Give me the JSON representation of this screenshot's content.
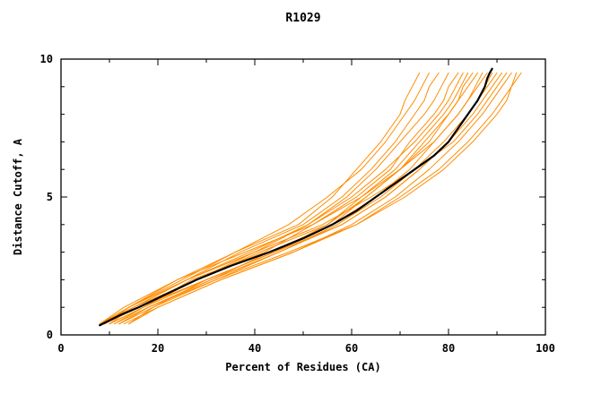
{
  "title": "R1029",
  "chart_data": {
    "type": "line",
    "title": "R1029",
    "xlabel": "Percent of Residues (CA)",
    "ylabel": "Distance Cutoff, A",
    "xlim": [
      0,
      100
    ],
    "ylim": [
      0,
      10
    ],
    "x_ticks": [
      0,
      20,
      40,
      60,
      80,
      100
    ],
    "y_ticks": [
      0,
      5,
      10
    ],
    "x_minor_step": 10,
    "y_minor_step": 1,
    "grid": false,
    "legend": "none",
    "colors": {
      "models": "#ff8c00",
      "reference": "#000000"
    },
    "common_y": [
      0.4,
      1,
      2,
      3,
      4,
      5,
      6,
      7,
      8,
      8.5,
      9,
      9.5
    ],
    "series": [
      {
        "name": "model-1",
        "color": "#ff8c00",
        "width": 1,
        "x": [
          9,
          14,
          24,
          36,
          49,
          56,
          61,
          66,
          70,
          71,
          72.5,
          74
        ]
      },
      {
        "name": "model-2",
        "color": "#ff8c00",
        "width": 1,
        "x": [
          8,
          15,
          26,
          37,
          50,
          58,
          64,
          69,
          73,
          75,
          76,
          78
        ]
      },
      {
        "name": "model-3",
        "color": "#ff8c00",
        "width": 1,
        "x": [
          10,
          17,
          27,
          42,
          52,
          61,
          68,
          72,
          77,
          79,
          80,
          82
        ]
      },
      {
        "name": "model-4",
        "color": "#ff8c00",
        "width": 1,
        "x": [
          12,
          18,
          31,
          43,
          56,
          63,
          70,
          75,
          80,
          82,
          83,
          85
        ]
      },
      {
        "name": "model-5",
        "color": "#ff8c00",
        "width": 1,
        "x": [
          8,
          15,
          28,
          41,
          55,
          63,
          70,
          76,
          80,
          82,
          84,
          86
        ]
      },
      {
        "name": "model-6",
        "color": "#ff8c00",
        "width": 1,
        "x": [
          10,
          17,
          30,
          44,
          56,
          65,
          72,
          77,
          82,
          84,
          86,
          88
        ]
      },
      {
        "name": "model-7",
        "color": "#ff8c00",
        "width": 1,
        "x": [
          12,
          19,
          32,
          45,
          58,
          67,
          74,
          80,
          84,
          86,
          88,
          90
        ]
      },
      {
        "name": "model-8",
        "color": "#ff8c00",
        "width": 1,
        "x": [
          9,
          16,
          30,
          44,
          58,
          67,
          74,
          80,
          85,
          87,
          89,
          91
        ]
      },
      {
        "name": "model-9",
        "color": "#ff8c00",
        "width": 1,
        "x": [
          13,
          20,
          33,
          48,
          60,
          69,
          76,
          82,
          87,
          89,
          91,
          93
        ]
      },
      {
        "name": "model-10",
        "color": "#ff8c00",
        "width": 1,
        "x": [
          11,
          18,
          32,
          47,
          61,
          70,
          78,
          84,
          89,
          91,
          93,
          95
        ]
      },
      {
        "name": "model-11",
        "color": "#ff8c00",
        "width": 1,
        "x": [
          14,
          19,
          30,
          44,
          55,
          62,
          69,
          74,
          79,
          81,
          82.5,
          84
        ]
      },
      {
        "name": "model-12",
        "color": "#ff8c00",
        "width": 1,
        "x": [
          8,
          13,
          24,
          38,
          52,
          62,
          70,
          77,
          82,
          84,
          85.5,
          87
        ]
      },
      {
        "name": "model-13",
        "color": "#ff8c00",
        "width": 1,
        "x": [
          11,
          17,
          28,
          40,
          51,
          59,
          65,
          70,
          75,
          77,
          78.5,
          80
        ]
      },
      {
        "name": "model-14",
        "color": "#ff8c00",
        "width": 1,
        "x": [
          10,
          15,
          26,
          40,
          54,
          64,
          73,
          81,
          86,
          88,
          90,
          92
        ]
      },
      {
        "name": "model-15",
        "color": "#ff8c00",
        "width": 1,
        "x": [
          9,
          14,
          25,
          36,
          47,
          55,
          62,
          67,
          71,
          73,
          74.5,
          76
        ]
      },
      {
        "name": "model-16",
        "color": "#ff8c00",
        "width": 1,
        "x": [
          12,
          18,
          31,
          45,
          57,
          66,
          73,
          79,
          84,
          86,
          87.5,
          89
        ]
      },
      {
        "name": "model-17",
        "color": "#ff8c00",
        "width": 1,
        "x": [
          14,
          20,
          33,
          48,
          61,
          71,
          79,
          85,
          90,
          92,
          93,
          94
        ]
      },
      {
        "name": "model-18",
        "color": "#ff8c00",
        "width": 1,
        "x": [
          8,
          14,
          26,
          39,
          51,
          60,
          67,
          73,
          78,
          80,
          81.5,
          83
        ]
      },
      {
        "name": "reference",
        "color": "#000000",
        "width": 2.2,
        "x": [
          8,
          12,
          16,
          22,
          28,
          35,
          43,
          50,
          56,
          61,
          65,
          69,
          73,
          77,
          80,
          82,
          84,
          86,
          87.5,
          88,
          88.5,
          89
        ],
        "y": [
          0.35,
          0.7,
          1,
          1.5,
          2,
          2.5,
          3,
          3.5,
          4,
          4.5,
          5,
          5.5,
          6,
          6.5,
          7,
          7.5,
          8,
          8.5,
          9,
          9.3,
          9.5,
          9.65
        ]
      }
    ]
  }
}
